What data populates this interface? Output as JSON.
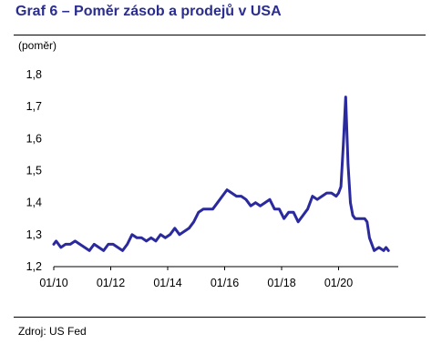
{
  "title": "Graf 6 – Poměr zásob a prodejů v USA",
  "unit_label": "(poměr)",
  "source": "Zdroj: US Fed",
  "colors": {
    "title": "#2a2d8f",
    "line": "#2a2a9e"
  },
  "chart_data": {
    "type": "line",
    "title": "Graf 6 – Poměr zásob a prodejů v USA",
    "xlabel": "",
    "ylabel": "(poměr)",
    "ylim": [
      1.2,
      1.8
    ],
    "yticks": [
      "1,2",
      "1,3",
      "1,4",
      "1,5",
      "1,6",
      "1,7",
      "1,8"
    ],
    "xticks": [
      "01/10",
      "01/12",
      "01/14",
      "01/16",
      "01/18",
      "01/20"
    ],
    "xlim": [
      "2010-01",
      "2021-10"
    ],
    "grid": false,
    "legend": "none",
    "series": [
      {
        "x": [
          "2010-01",
          "2010-02",
          "2010-04",
          "2010-06",
          "2010-08",
          "2010-10",
          "2010-12",
          "2011-02",
          "2011-04",
          "2011-06",
          "2011-08",
          "2011-10",
          "2011-12",
          "2012-02",
          "2012-04",
          "2012-06",
          "2012-08",
          "2012-10",
          "2012-12",
          "2013-02",
          "2013-04",
          "2013-06",
          "2013-08",
          "2013-10",
          "2013-12",
          "2014-02",
          "2014-04",
          "2014-06",
          "2014-08",
          "2014-10",
          "2014-12",
          "2015-02",
          "2015-04",
          "2015-06",
          "2015-08",
          "2015-10",
          "2015-12",
          "2016-02",
          "2016-04",
          "2016-06",
          "2016-08",
          "2016-10",
          "2016-12",
          "2017-02",
          "2017-04",
          "2017-06",
          "2017-08",
          "2017-10",
          "2017-12",
          "2018-02",
          "2018-04",
          "2018-06",
          "2018-08",
          "2018-10",
          "2018-12",
          "2019-02",
          "2019-04",
          "2019-06",
          "2019-08",
          "2019-10",
          "2019-12",
          "2020-01",
          "2020-02",
          "2020-03",
          "2020-04",
          "2020-05",
          "2020-06",
          "2020-07",
          "2020-08",
          "2020-10",
          "2020-12",
          "2021-01",
          "2021-02",
          "2021-03",
          "2021-04",
          "2021-06",
          "2021-08",
          "2021-09",
          "2021-10"
        ],
        "values": [
          1.27,
          1.28,
          1.26,
          1.27,
          1.27,
          1.28,
          1.27,
          1.26,
          1.25,
          1.27,
          1.26,
          1.25,
          1.27,
          1.27,
          1.26,
          1.25,
          1.27,
          1.3,
          1.29,
          1.29,
          1.28,
          1.29,
          1.28,
          1.3,
          1.29,
          1.3,
          1.32,
          1.3,
          1.31,
          1.32,
          1.34,
          1.37,
          1.38,
          1.38,
          1.38,
          1.4,
          1.42,
          1.44,
          1.43,
          1.42,
          1.42,
          1.41,
          1.39,
          1.4,
          1.39,
          1.4,
          1.41,
          1.38,
          1.38,
          1.35,
          1.37,
          1.37,
          1.34,
          1.36,
          1.38,
          1.42,
          1.41,
          1.42,
          1.43,
          1.43,
          1.42,
          1.43,
          1.45,
          1.58,
          1.73,
          1.52,
          1.4,
          1.36,
          1.35,
          1.35,
          1.35,
          1.34,
          1.29,
          1.27,
          1.25,
          1.26,
          1.25,
          1.26,
          1.25
        ]
      }
    ]
  }
}
